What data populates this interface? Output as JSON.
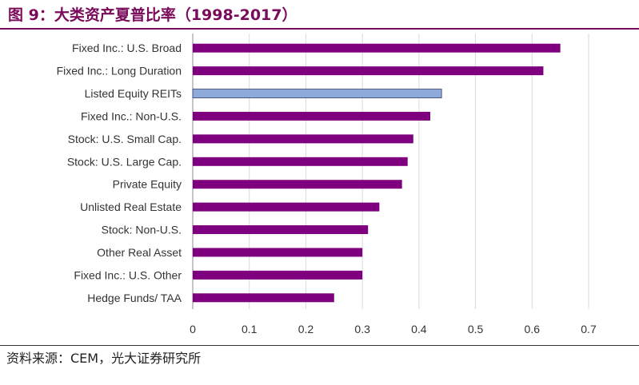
{
  "title": "图 9：大类资产夏普比率（1998-2017）",
  "source": "资料来源：CEM，光大证券研究所",
  "colors": {
    "title": "#7a0a5a",
    "bar_default": "#7f007f",
    "bar_highlight": "#8eaadb",
    "grid": "#d9d9d9",
    "axis": "#8c8c8c"
  },
  "chart_data": {
    "type": "bar",
    "orientation": "horizontal",
    "categories": [
      "Fixed Inc.: U.S. Broad",
      "Fixed Inc.: Long Duration",
      "Listed Equity REITs",
      "Fixed Inc.: Non-U.S.",
      "Stock: U.S. Small Cap.",
      "Stock: U.S. Large Cap.",
      "Private Equity",
      "Unlisted Real Estate",
      "Stock: Non-U.S.",
      "Other Real Asset",
      "Fixed Inc.: U.S. Other",
      "Hedge Funds/ TAA"
    ],
    "values": [
      0.65,
      0.62,
      0.44,
      0.42,
      0.39,
      0.38,
      0.37,
      0.33,
      0.31,
      0.3,
      0.3,
      0.25
    ],
    "highlight_index": 2,
    "xlim": [
      0,
      0.7
    ],
    "xticks": [
      "0",
      "0.1",
      "0.2",
      "0.3",
      "0.4",
      "0.5",
      "0.6",
      "0.7"
    ],
    "grid": "vertical",
    "legend": "none"
  }
}
